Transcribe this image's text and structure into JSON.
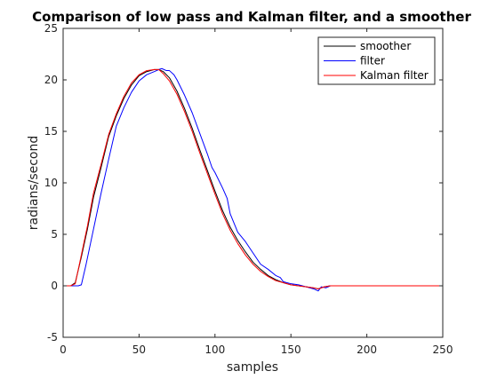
{
  "chart_data": {
    "type": "line",
    "title": "Comparison of low pass and Kalman filter, and a smoother",
    "xlabel": "samples",
    "ylabel": "radians/second",
    "xlim": [
      0,
      250
    ],
    "ylim": [
      -5,
      25
    ],
    "xticks": [
      "0",
      "50",
      "100",
      "150",
      "200",
      "250"
    ],
    "yticks": [
      "-5",
      "0",
      "5",
      "10",
      "15",
      "20",
      "25"
    ],
    "grid": false,
    "legend_position": "top-right",
    "series": [
      {
        "name": "smoother",
        "color": "#000000",
        "x": [
          0,
          5,
          8,
          12,
          16,
          20,
          25,
          30,
          35,
          40,
          45,
          50,
          55,
          60,
          63,
          66,
          70,
          75,
          80,
          85,
          90,
          95,
          100,
          105,
          110,
          115,
          120,
          125,
          130,
          135,
          140,
          145,
          150,
          155,
          160,
          165,
          168,
          172,
          176,
          180,
          190,
          200,
          220,
          250
        ],
        "y": [
          0,
          0,
          0.3,
          2.8,
          5.5,
          8.6,
          11.5,
          14.5,
          16.5,
          18.2,
          19.5,
          20.4,
          20.8,
          21.0,
          21.0,
          20.8,
          20.2,
          18.9,
          17.2,
          15.3,
          13.2,
          11.2,
          9.2,
          7.3,
          5.7,
          4.4,
          3.3,
          2.3,
          1.6,
          1.0,
          0.6,
          0.3,
          0.1,
          0.0,
          -0.1,
          -0.2,
          -0.3,
          -0.1,
          0.0,
          0.0,
          0.0,
          0.0,
          0.0,
          0.0
        ]
      },
      {
        "name": "filter",
        "color": "#0000ff",
        "x": [
          0,
          5,
          10,
          12,
          15,
          20,
          25,
          30,
          35,
          40,
          45,
          50,
          55,
          60,
          63,
          65,
          68,
          70,
          73,
          75,
          80,
          85,
          90,
          95,
          98,
          100,
          105,
          108,
          110,
          115,
          120,
          125,
          130,
          135,
          140,
          143,
          145,
          150,
          155,
          160,
          165,
          168,
          170,
          173,
          176,
          180,
          190,
          200,
          220,
          250
        ],
        "y": [
          0,
          0,
          0,
          0.1,
          2.0,
          5.5,
          9.0,
          12.3,
          15.5,
          17.3,
          18.8,
          19.9,
          20.5,
          20.8,
          21.0,
          21.1,
          20.9,
          20.9,
          20.5,
          20.0,
          18.5,
          16.8,
          14.8,
          12.8,
          11.5,
          11.0,
          9.5,
          8.5,
          7.0,
          5.2,
          4.3,
          3.2,
          2.1,
          1.6,
          1.0,
          0.8,
          0.4,
          0.2,
          0.1,
          -0.1,
          -0.3,
          -0.5,
          -0.1,
          -0.2,
          0.0,
          0.0,
          0.0,
          0.0,
          0.0,
          0.0
        ]
      },
      {
        "name": "Kalman filter",
        "color": "#ff0000",
        "x": [
          0,
          5,
          8,
          12,
          16,
          20,
          25,
          30,
          35,
          40,
          45,
          50,
          55,
          60,
          63,
          66,
          70,
          75,
          80,
          85,
          90,
          95,
          100,
          105,
          110,
          115,
          120,
          125,
          130,
          135,
          140,
          145,
          150,
          155,
          160,
          165,
          168,
          172,
          176,
          180,
          190,
          200,
          220,
          250
        ],
        "y": [
          0,
          0,
          0.2,
          3.0,
          5.8,
          9.0,
          11.8,
          14.7,
          16.7,
          18.4,
          19.7,
          20.5,
          20.9,
          21.0,
          21.0,
          20.6,
          19.9,
          18.6,
          16.9,
          15.0,
          12.9,
          10.9,
          8.9,
          7.0,
          5.4,
          4.1,
          3.0,
          2.1,
          1.4,
          0.9,
          0.5,
          0.3,
          0.1,
          0.0,
          -0.1,
          -0.2,
          -0.3,
          -0.1,
          0.0,
          0.0,
          0.0,
          0.0,
          0.0,
          0.0
        ]
      }
    ]
  }
}
